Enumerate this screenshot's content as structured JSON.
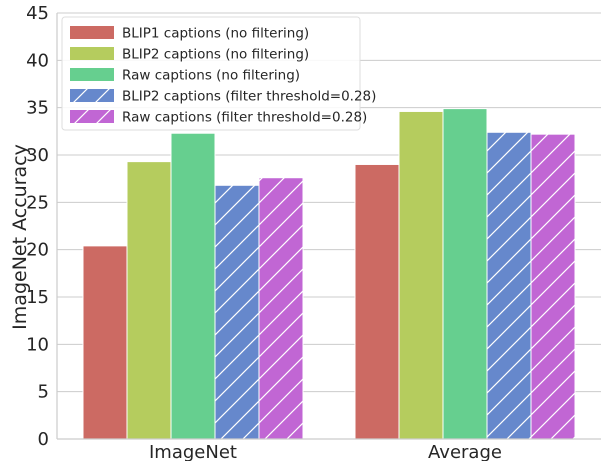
{
  "chart_data": {
    "type": "bar",
    "title": "",
    "xlabel": "",
    "ylabel": "ImageNet Accuracy",
    "ylim": [
      0,
      45
    ],
    "yticks": [
      0,
      5,
      10,
      15,
      20,
      25,
      30,
      35,
      40,
      45
    ],
    "grid": "horizontal",
    "legend_position": "top-left",
    "categories": [
      "ImageNet",
      "Average"
    ],
    "series": [
      {
        "name": "BLIP1 captions (no filtering)",
        "values": [
          20.4,
          29.0
        ],
        "color": "#cc6a63",
        "hatch": false
      },
      {
        "name": "BLIP2 captions (no filtering)",
        "values": [
          29.3,
          34.6
        ],
        "color": "#b5cc5e",
        "hatch": false
      },
      {
        "name": "Raw captions (no filtering)",
        "values": [
          32.3,
          34.9
        ],
        "color": "#66cf8f",
        "hatch": false
      },
      {
        "name": "BLIP2 captions (filter threshold=0.28)",
        "values": [
          26.8,
          32.4
        ],
        "color": "#6688cc",
        "hatch": true
      },
      {
        "name": "Raw captions (filter threshold=0.28)",
        "values": [
          27.6,
          32.2
        ],
        "color": "#c166d4",
        "hatch": true
      }
    ]
  }
}
